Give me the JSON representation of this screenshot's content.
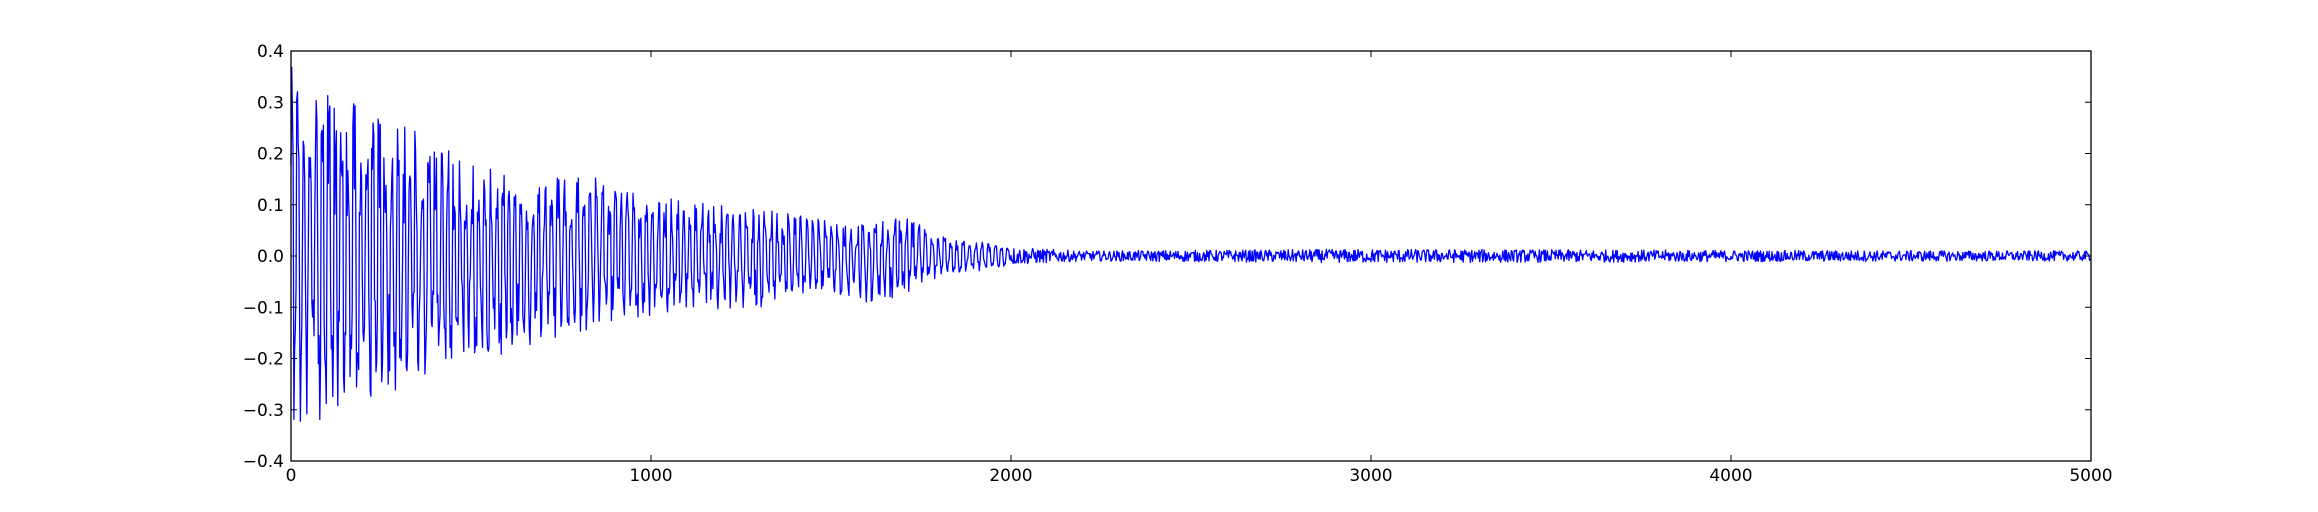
{
  "chart_data": {
    "type": "line",
    "title": "",
    "xlabel": "",
    "ylabel": "",
    "xlim": [
      0,
      5000
    ],
    "ylim": [
      -0.4,
      0.4
    ],
    "grid": false,
    "legend": "none",
    "x_ticks": [
      0,
      1000,
      2000,
      3000,
      4000,
      5000
    ],
    "x_tick_labels": [
      "0",
      "1000",
      "2000",
      "3000",
      "4000",
      "5000"
    ],
    "y_ticks": [
      -0.4,
      -0.3,
      -0.2,
      -0.1,
      0.0,
      0.1,
      0.2,
      0.3,
      0.4
    ],
    "y_tick_labels": [
      "−0.4",
      "−0.3",
      "−0.2",
      "−0.1",
      "0.0",
      "0.1",
      "0.2",
      "0.3",
      "0.4"
    ],
    "series": [
      {
        "color": "#0000ff",
        "description": "decaying oscillation, 5000 samples",
        "envelope_x": [
          0,
          100,
          200,
          300,
          400,
          500,
          600,
          700,
          800,
          900,
          1000,
          1100,
          1200,
          1300,
          1400,
          1500,
          1600,
          1700,
          1800,
          1900,
          2000,
          2100,
          2200,
          3000,
          4000,
          5000
        ],
        "envelope_max": [
          0.37,
          0.33,
          0.29,
          0.26,
          0.23,
          0.18,
          0.16,
          0.15,
          0.18,
          0.13,
          0.12,
          0.11,
          0.1,
          0.09,
          0.09,
          0.07,
          0.06,
          0.08,
          0.04,
          0.03,
          0.02,
          0.015,
          0.01,
          0.01,
          0.01,
          0.01
        ],
        "envelope_min": [
          -0.37,
          -0.32,
          -0.29,
          -0.26,
          -0.24,
          -0.21,
          -0.19,
          -0.17,
          -0.16,
          -0.14,
          -0.12,
          -0.11,
          -0.11,
          -0.1,
          -0.09,
          -0.08,
          -0.09,
          -0.09,
          -0.04,
          -0.03,
          -0.02,
          -0.015,
          -0.012,
          -0.02,
          -0.015,
          -0.012
        ]
      }
    ]
  }
}
